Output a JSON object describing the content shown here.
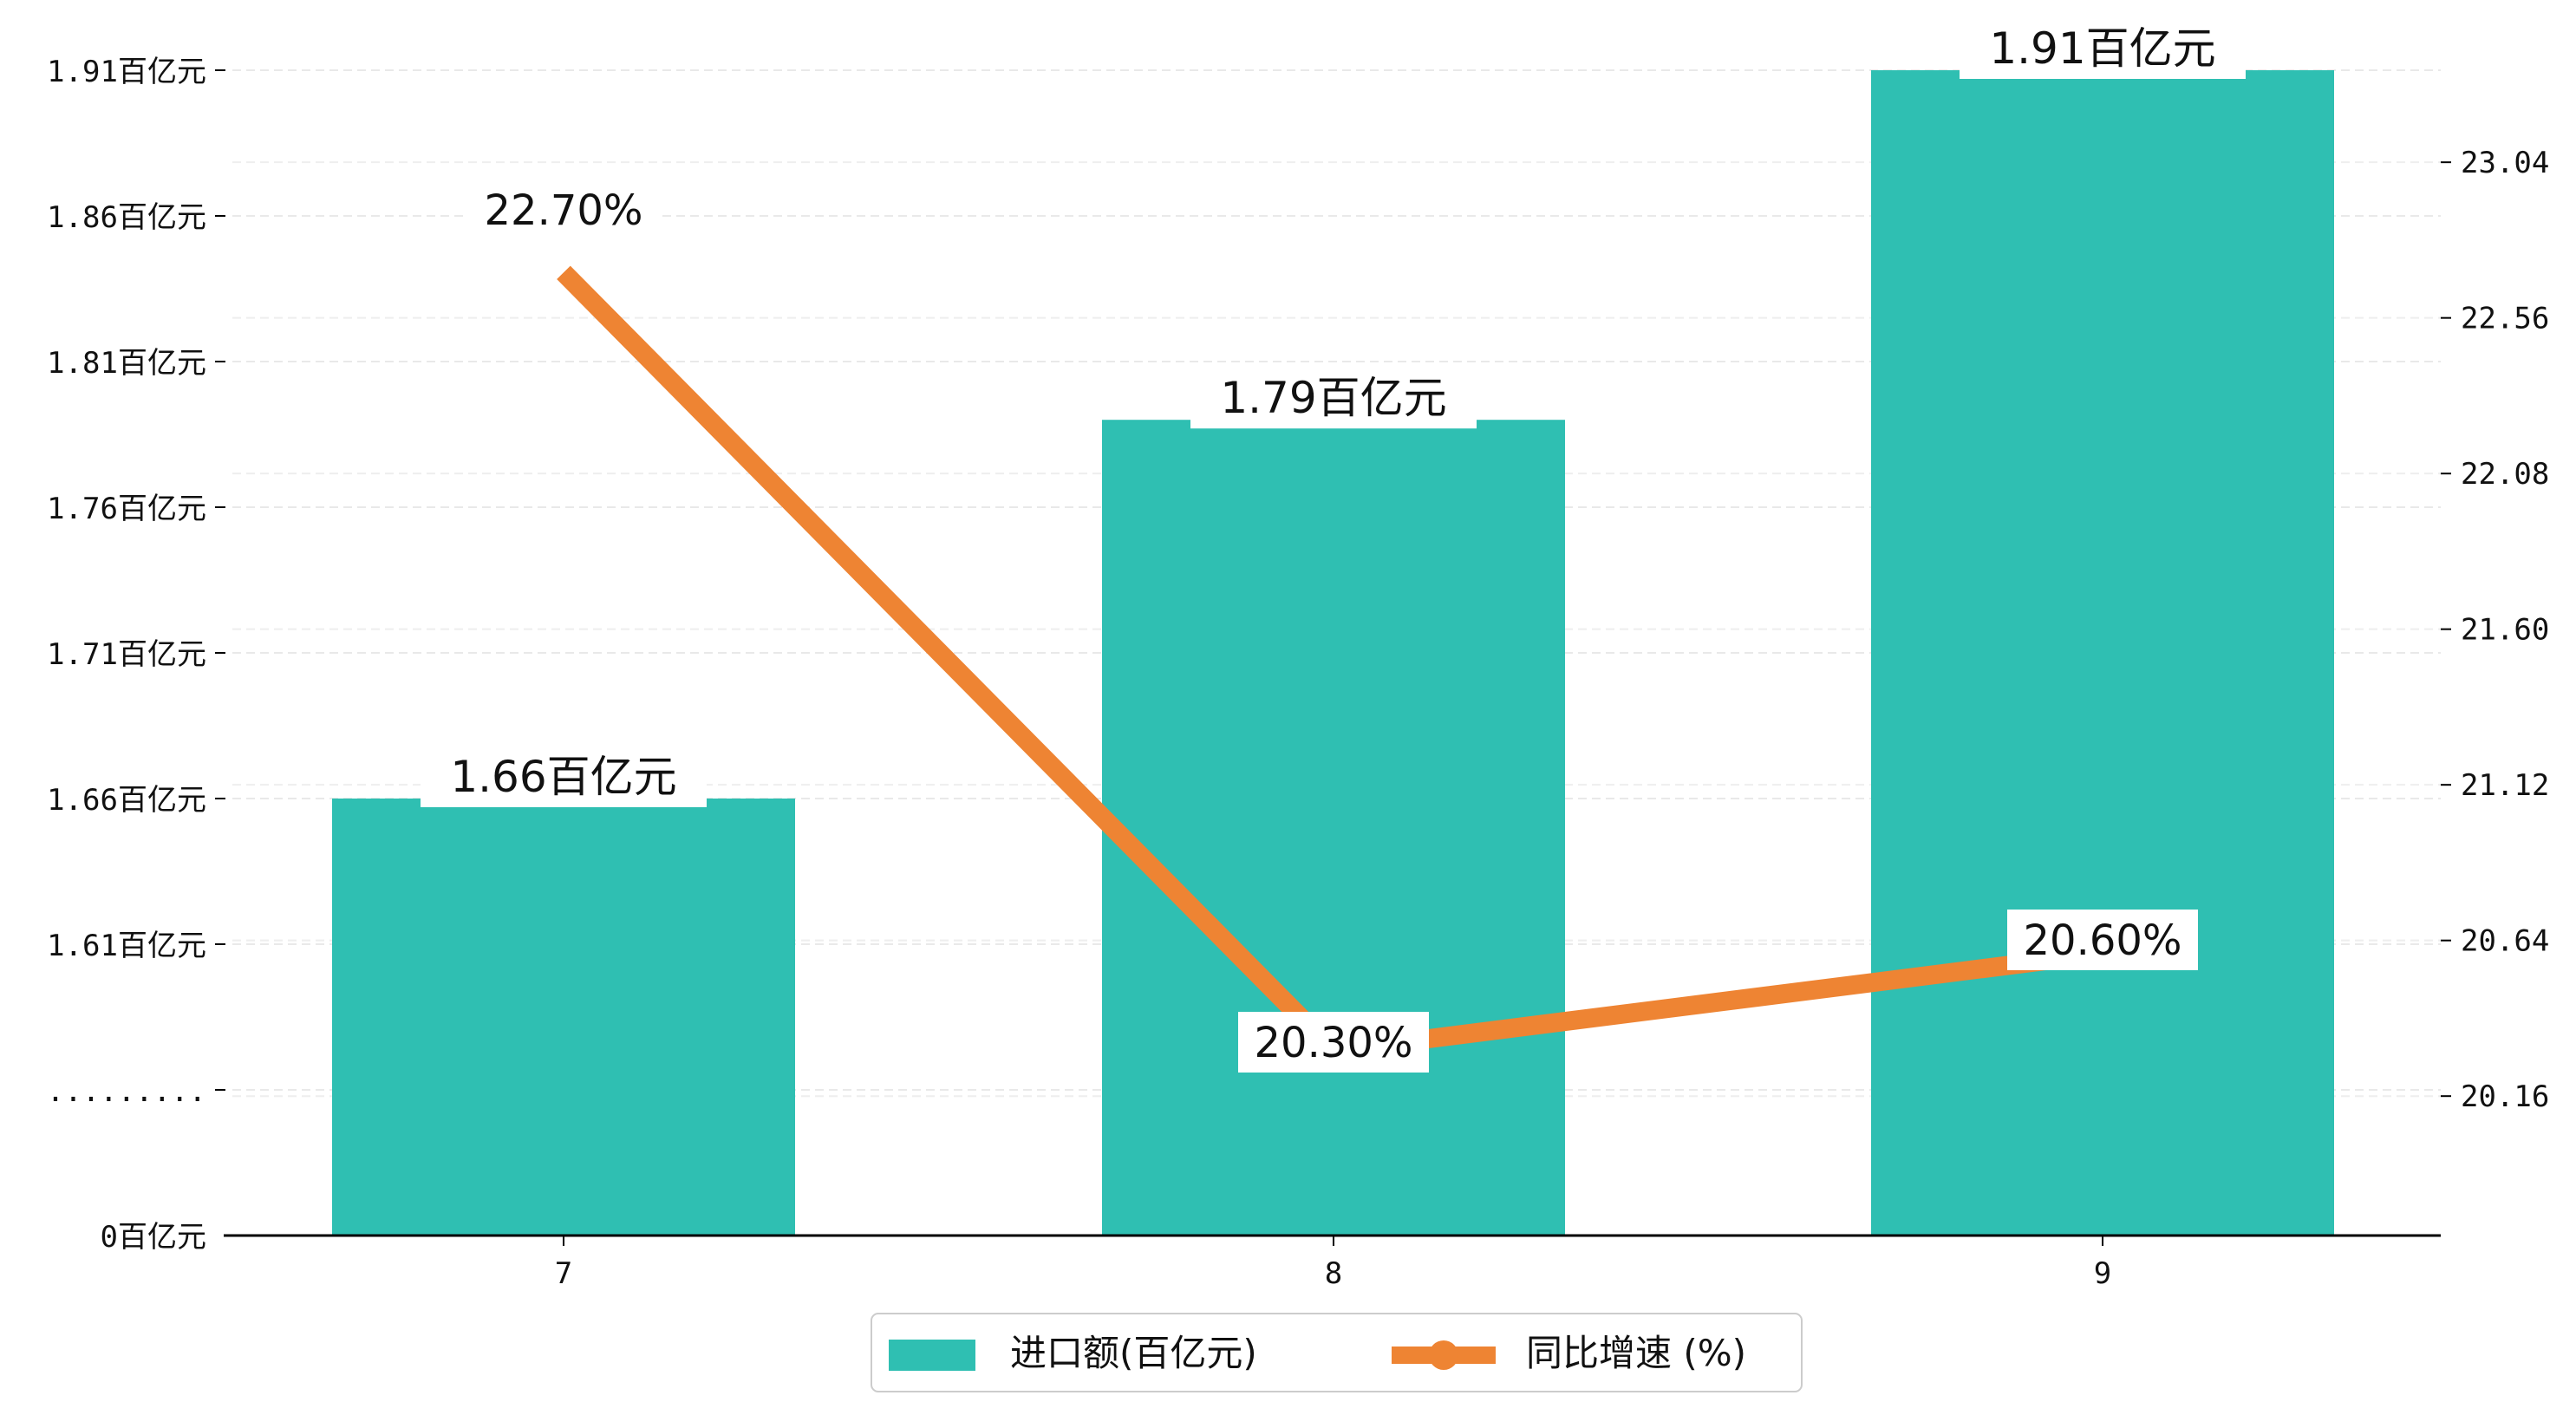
{
  "chart_data": {
    "type": "bar",
    "categories": [
      "7",
      "8",
      "9"
    ],
    "series": [
      {
        "name": "进口额(百亿元)",
        "kind": "bar",
        "axis": "left",
        "values": [
          1.66,
          1.79,
          1.91
        ],
        "value_labels": [
          "1.66百亿元",
          "1.79百亿元",
          "1.91百亿元"
        ],
        "color": "#2fbfb2"
      },
      {
        "name": "同比增速 (%)",
        "kind": "line",
        "axis": "right",
        "values": [
          22.7,
          20.3,
          20.6
        ],
        "value_labels": [
          "22.70%",
          "20.30%",
          "20.60%"
        ],
        "color": "#ee8433"
      }
    ],
    "y_left": {
      "ticks": [
        {
          "label": "0百亿元",
          "value": 0
        },
        {
          "label": "........."
        },
        {
          "label": "1.61百亿元",
          "value": 1.61
        },
        {
          "label": "1.66百亿元",
          "value": 1.66
        },
        {
          "label": "1.71百亿元",
          "value": 1.71
        },
        {
          "label": "1.76百亿元",
          "value": 1.76
        },
        {
          "label": "1.81百亿元",
          "value": 1.81
        },
        {
          "label": "1.86百亿元",
          "value": 1.86
        },
        {
          "label": "1.91百亿元",
          "value": 1.91
        }
      ],
      "broken_axis": true
    },
    "y_right": {
      "ticks": [
        "20.16",
        "20.64",
        "21.12",
        "21.60",
        "22.08",
        "22.56",
        "23.04"
      ],
      "range": [
        19.73,
        23.38
      ]
    },
    "grid": true,
    "legend_position": "bottom-center"
  }
}
